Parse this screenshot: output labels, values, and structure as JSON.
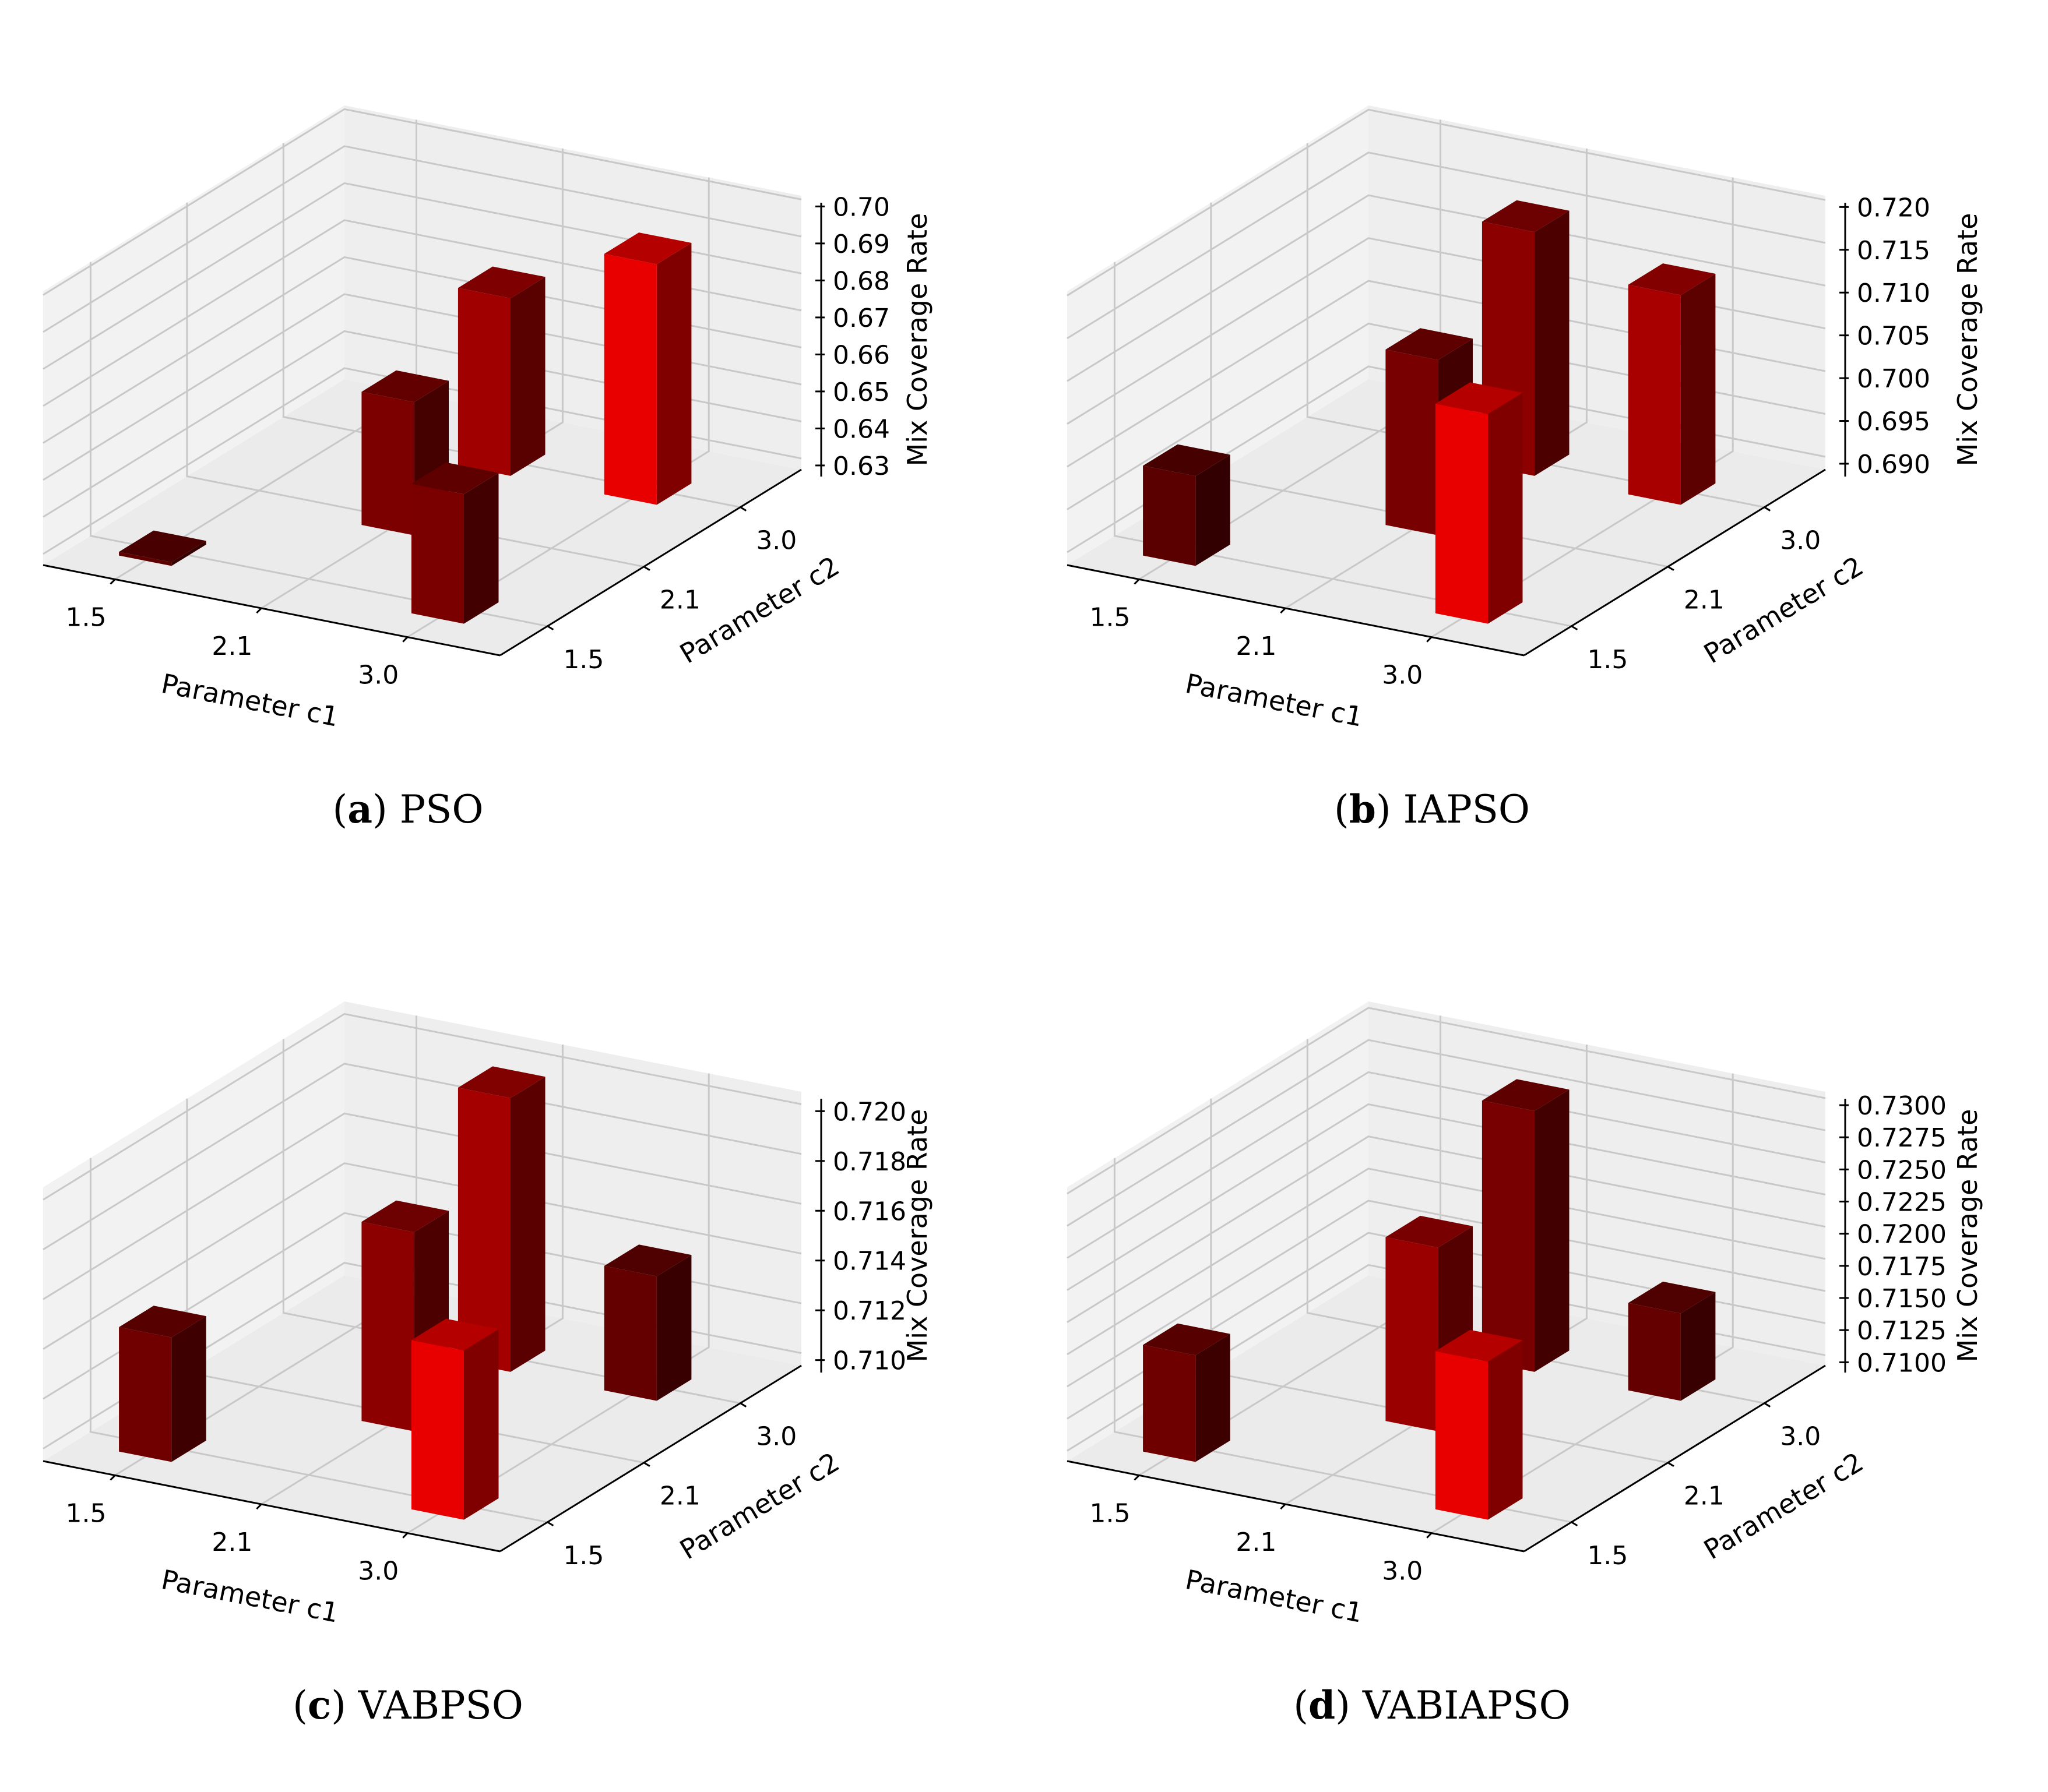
{
  "figure": {
    "panels": [
      {
        "caption_letter": "a",
        "caption_name": "PSO",
        "chart_data": {
          "type": "bar3d",
          "title": "",
          "xlabel": "Parameter c1",
          "ylabel": "Parameter c2",
          "zlabel": "Mix Coverage Rate",
          "x_ticks": [
            "1.5",
            "2.1",
            "3.0"
          ],
          "y_ticks": [
            "1.5",
            "2.1",
            "3.0"
          ],
          "z_ticks": [
            "0.63",
            "0.64",
            "0.65",
            "0.66",
            "0.67",
            "0.68",
            "0.69",
            "0.70"
          ],
          "zlim": [
            0.627,
            0.701
          ],
          "bars": [
            {
              "c1": "1.5",
              "c2": "1.5",
              "value": 0.628,
              "color": "#5e0000"
            },
            {
              "c1": "2.1",
              "c2": "2.1",
              "value": 0.663,
              "color": "#7d0000"
            },
            {
              "c1": "2.1",
              "c2": "3.0",
              "value": 0.675,
              "color": "#a10000"
            },
            {
              "c1": "3.0",
              "c2": "1.5",
              "value": 0.662,
              "color": "#7a0000"
            },
            {
              "c1": "3.0",
              "c2": "3.0",
              "value": 0.692,
              "color": "#e80000"
            }
          ]
        }
      },
      {
        "caption_letter": "b",
        "caption_name": "IAPSO",
        "chart_data": {
          "type": "bar3d",
          "title": "",
          "xlabel": "Parameter c1",
          "ylabel": "Parameter c2",
          "zlabel": "Mix Coverage Rate",
          "x_ticks": [
            "1.5",
            "2.1",
            "3.0"
          ],
          "y_ticks": [
            "1.5",
            "2.1",
            "3.0"
          ],
          "z_ticks": [
            "0.690",
            "0.695",
            "0.700",
            "0.705",
            "0.710",
            "0.715",
            "0.720"
          ],
          "zlim": [
            0.6885,
            0.7205
          ],
          "bars": [
            {
              "c1": "1.5",
              "c2": "1.5",
              "value": 0.699,
              "color": "#5a0000"
            },
            {
              "c1": "2.1",
              "c2": "2.1",
              "value": 0.709,
              "color": "#780000"
            },
            {
              "c1": "2.1",
              "c2": "3.0",
              "value": 0.717,
              "color": "#8c0000"
            },
            {
              "c1": "3.0",
              "c2": "1.5",
              "value": 0.713,
              "color": "#e80000"
            },
            {
              "c1": "3.0",
              "c2": "3.0",
              "value": 0.713,
              "color": "#a80000"
            }
          ]
        }
      },
      {
        "caption_letter": "c",
        "caption_name": "VABPSO",
        "chart_data": {
          "type": "bar3d",
          "title": "",
          "xlabel": "Parameter c1",
          "ylabel": "Parameter c2",
          "zlabel": "Mix Coverage Rate",
          "x_ticks": [
            "1.5",
            "2.1",
            "3.0"
          ],
          "y_ticks": [
            "1.5",
            "2.1",
            "3.0"
          ],
          "z_ticks": [
            "0.710",
            "0.712",
            "0.714",
            "0.716",
            "0.718",
            "0.720"
          ],
          "zlim": [
            0.7095,
            0.7205
          ],
          "bars": [
            {
              "c1": "1.5",
              "c2": "1.5",
              "value": 0.7145,
              "color": "#700000"
            },
            {
              "c1": "2.1",
              "c2": "2.1",
              "value": 0.7175,
              "color": "#8c0000"
            },
            {
              "c1": "2.1",
              "c2": "3.0",
              "value": 0.7205,
              "color": "#a50000"
            },
            {
              "c1": "3.0",
              "c2": "1.5",
              "value": 0.7163,
              "color": "#e80000"
            },
            {
              "c1": "3.0",
              "c2": "3.0",
              "value": 0.7145,
              "color": "#650000"
            }
          ]
        }
      },
      {
        "caption_letter": "d",
        "caption_name": "VABIAPSO",
        "chart_data": {
          "type": "bar3d",
          "title": "",
          "xlabel": "Parameter c1",
          "ylabel": "Parameter c2",
          "zlabel": "Mix Coverage Rate",
          "x_ticks": [
            "1.5",
            "2.1",
            "3.0"
          ],
          "y_ticks": [
            "1.5",
            "2.1",
            "3.0"
          ],
          "z_ticks": [
            "0.7100",
            "0.7125",
            "0.7150",
            "0.7175",
            "0.7200",
            "0.7225",
            "0.7250",
            "0.7275",
            "0.7300"
          ],
          "zlim": [
            0.7092,
            0.7305
          ],
          "bars": [
            {
              "c1": "1.5",
              "c2": "1.5",
              "value": 0.7175,
              "color": "#6e0000"
            },
            {
              "c1": "2.1",
              "c2": "2.1",
              "value": 0.7235,
              "color": "#9b0000"
            },
            {
              "c1": "2.1",
              "c2": "3.0",
              "value": 0.7295,
              "color": "#780000"
            },
            {
              "c1": "3.0",
              "c2": "1.5",
              "value": 0.7215,
              "color": "#e80000"
            },
            {
              "c1": "3.0",
              "c2": "3.0",
              "value": 0.716,
              "color": "#650000"
            }
          ]
        }
      }
    ]
  }
}
